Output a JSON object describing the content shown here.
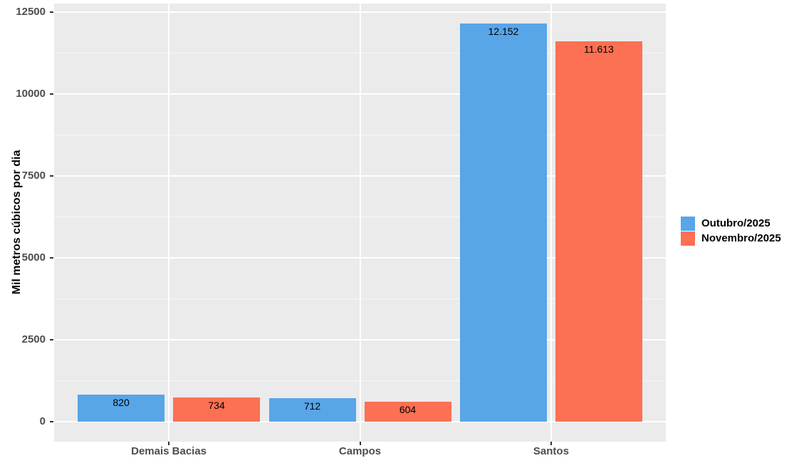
{
  "chart_data": {
    "type": "bar",
    "title": "",
    "xlabel": "",
    "ylabel": "Mil metros cúbicos por dia",
    "categories": [
      "Demais Bacias",
      "Campos",
      "Santos"
    ],
    "series": [
      {
        "name": "Outubro/2025",
        "color": "#58A5E8",
        "values": [
          820,
          712,
          12152
        ],
        "value_labels": [
          "820",
          "712",
          "12.152"
        ]
      },
      {
        "name": "Novembro/2025",
        "color": "#FC7053",
        "values": [
          734,
          604,
          11613
        ],
        "value_labels": [
          "734",
          "604",
          "11.613"
        ]
      }
    ],
    "y_ticks": [
      0,
      2500,
      5000,
      7500,
      10000,
      12500
    ],
    "y_tick_labels": [
      "0",
      "2500",
      "5000",
      "7500",
      "10000",
      "12500"
    ],
    "y_minor_ticks": [
      1250,
      3750,
      6250,
      8750,
      11250
    ],
    "ylim": [
      -608,
      12760
    ],
    "grid": true,
    "legend_position": "right",
    "colors": {
      "background": "#FFFFFF",
      "panel_bg": "#EBEBEB",
      "grid": "#FFFFFF",
      "axis_text": "#4D4D4D",
      "tick_mark": "#333333",
      "bar_label_text": "#000000"
    }
  }
}
